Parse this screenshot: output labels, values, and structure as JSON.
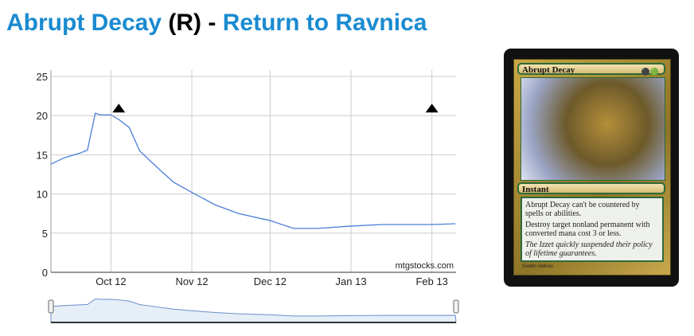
{
  "header": {
    "card_name": "Abrupt Decay",
    "rarity": "(R)",
    "separator": "-",
    "set_name": "Return to Ravnica"
  },
  "watermark": "mtgstocks.com",
  "card": {
    "name": "Abrupt Decay",
    "mana_cost": "BG",
    "type": "Instant",
    "rules": [
      "Abrupt Decay can't be countered by spells or abilities.",
      "Destroy target nonland permanent with converted mana cost 3 or less."
    ],
    "flavor": "The Izzet quickly suspended their policy of lifetime guarantees.",
    "artist": "Svetlin Velinov"
  },
  "chart_data": {
    "type": "line",
    "title": "",
    "xlabel": "",
    "ylabel": "",
    "ylim": [
      0,
      25
    ],
    "grid": true,
    "yticks": [
      "0",
      "5",
      "10",
      "15",
      "20",
      "25"
    ],
    "xticks": [
      "Oct 12",
      "Nov 12",
      "Dec 12",
      "Jan 13",
      "Feb 13"
    ],
    "line_color": "#4a7fd8",
    "x": [
      "2012-09-08",
      "2012-09-13",
      "2012-09-19",
      "2012-09-22",
      "2012-09-25",
      "2012-09-27",
      "2012-10-01",
      "2012-10-04",
      "2012-10-08",
      "2012-10-12",
      "2012-10-19",
      "2012-10-25",
      "2012-11-01",
      "2012-11-10",
      "2012-11-19",
      "2012-12-01",
      "2012-12-10",
      "2012-12-19",
      "2013-01-01",
      "2013-01-13",
      "2013-02-01",
      "2013-02-10"
    ],
    "y": [
      13.8,
      14.6,
      15.2,
      15.6,
      20.3,
      20.1,
      20.1,
      19.5,
      18.5,
      15.5,
      13.3,
      11.5,
      10.2,
      8.6,
      7.5,
      6.6,
      5.6,
      5.6,
      5.9,
      6.1,
      6.1,
      6.2
    ],
    "markers": [
      {
        "date": "2012-10-04",
        "icon": "set-release-icon"
      },
      {
        "date": "2013-02-01",
        "icon": "set-release-icon"
      }
    ]
  }
}
